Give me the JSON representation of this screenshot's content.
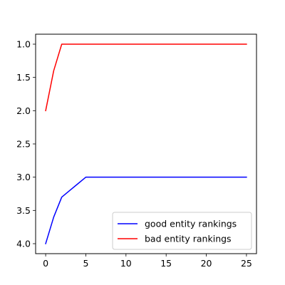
{
  "chart_data": {
    "type": "line",
    "title": "",
    "xlabel": "",
    "ylabel": "",
    "xlim": [
      -1.25,
      26.25
    ],
    "ylim": [
      4.15,
      0.85
    ],
    "y_inverted": true,
    "grid": false,
    "legend_position": "lower-right",
    "xticks": [
      "0",
      "5",
      "10",
      "15",
      "20",
      "25"
    ],
    "yticks": [
      "1.0",
      "1.5",
      "2.0",
      "2.5",
      "3.0",
      "3.5",
      "4.0"
    ],
    "series": [
      {
        "name": "good entity rankings",
        "color": "#0000ff",
        "x": [
          0,
          1,
          2,
          3,
          4,
          5,
          6,
          7,
          8,
          9,
          10,
          11,
          12,
          13,
          14,
          15,
          16,
          17,
          18,
          19,
          20,
          21,
          22,
          23,
          24,
          25
        ],
        "y": [
          4.0,
          3.6,
          3.3,
          3.2,
          3.1,
          3.0,
          3.0,
          3.0,
          3.0,
          3.0,
          3.0,
          3.0,
          3.0,
          3.0,
          3.0,
          3.0,
          3.0,
          3.0,
          3.0,
          3.0,
          3.0,
          3.0,
          3.0,
          3.0,
          3.0,
          3.0
        ]
      },
      {
        "name": "bad entity rankings",
        "color": "#ff0000",
        "x": [
          0,
          1,
          2,
          3,
          4,
          5,
          6,
          7,
          8,
          9,
          10,
          11,
          12,
          13,
          14,
          15,
          16,
          17,
          18,
          19,
          20,
          21,
          22,
          23,
          24,
          25
        ],
        "y": [
          2.0,
          1.4,
          1.0,
          1.0,
          1.0,
          1.0,
          1.0,
          1.0,
          1.0,
          1.0,
          1.0,
          1.0,
          1.0,
          1.0,
          1.0,
          1.0,
          1.0,
          1.0,
          1.0,
          1.0,
          1.0,
          1.0,
          1.0,
          1.0,
          1.0,
          1.0
        ]
      }
    ]
  }
}
